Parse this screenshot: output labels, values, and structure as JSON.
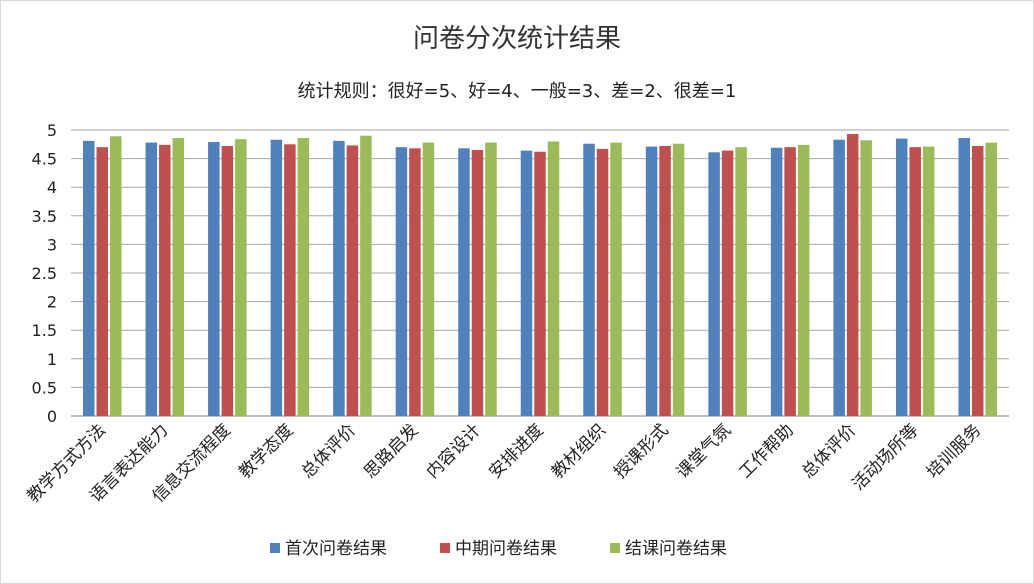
{
  "chart_data": {
    "type": "bar",
    "title": "问卷分次统计结果",
    "subtitle": "统计规则：很好=5、好=4、一般=3、差=2、很差=1",
    "categories": [
      "教学方式方法",
      "语言表达能力",
      "信息交流程度",
      "教学态度",
      "总体评价",
      "思路启发",
      "内容设计",
      "安排进度",
      "教材组织",
      "授课形式",
      "课堂气氛",
      "工作帮助",
      "总体评价",
      "活动场所等",
      "培训服务"
    ],
    "series": [
      {
        "name": "首次问卷结果",
        "color": "#4F81BD",
        "values": [
          4.81,
          4.78,
          4.79,
          4.83,
          4.81,
          4.7,
          4.68,
          4.64,
          4.76,
          4.71,
          4.61,
          4.69,
          4.83,
          4.85,
          4.86
        ]
      },
      {
        "name": "中期问卷结果",
        "color": "#C0504D",
        "values": [
          4.7,
          4.74,
          4.72,
          4.75,
          4.73,
          4.68,
          4.65,
          4.62,
          4.67,
          4.72,
          4.64,
          4.7,
          4.93,
          4.7,
          4.72
        ]
      },
      {
        "name": "结课问卷结果",
        "color": "#9BBB59",
        "values": [
          4.89,
          4.86,
          4.84,
          4.86,
          4.9,
          4.78,
          4.78,
          4.8,
          4.78,
          4.76,
          4.7,
          4.74,
          4.82,
          4.71,
          4.78
        ]
      }
    ],
    "yticks": [
      "0",
      "0.5",
      "1",
      "1.5",
      "2",
      "2.5",
      "3",
      "3.5",
      "4",
      "4.5",
      "5"
    ],
    "ylim": [
      0,
      5
    ],
    "grid": true,
    "legend": "bottom"
  }
}
